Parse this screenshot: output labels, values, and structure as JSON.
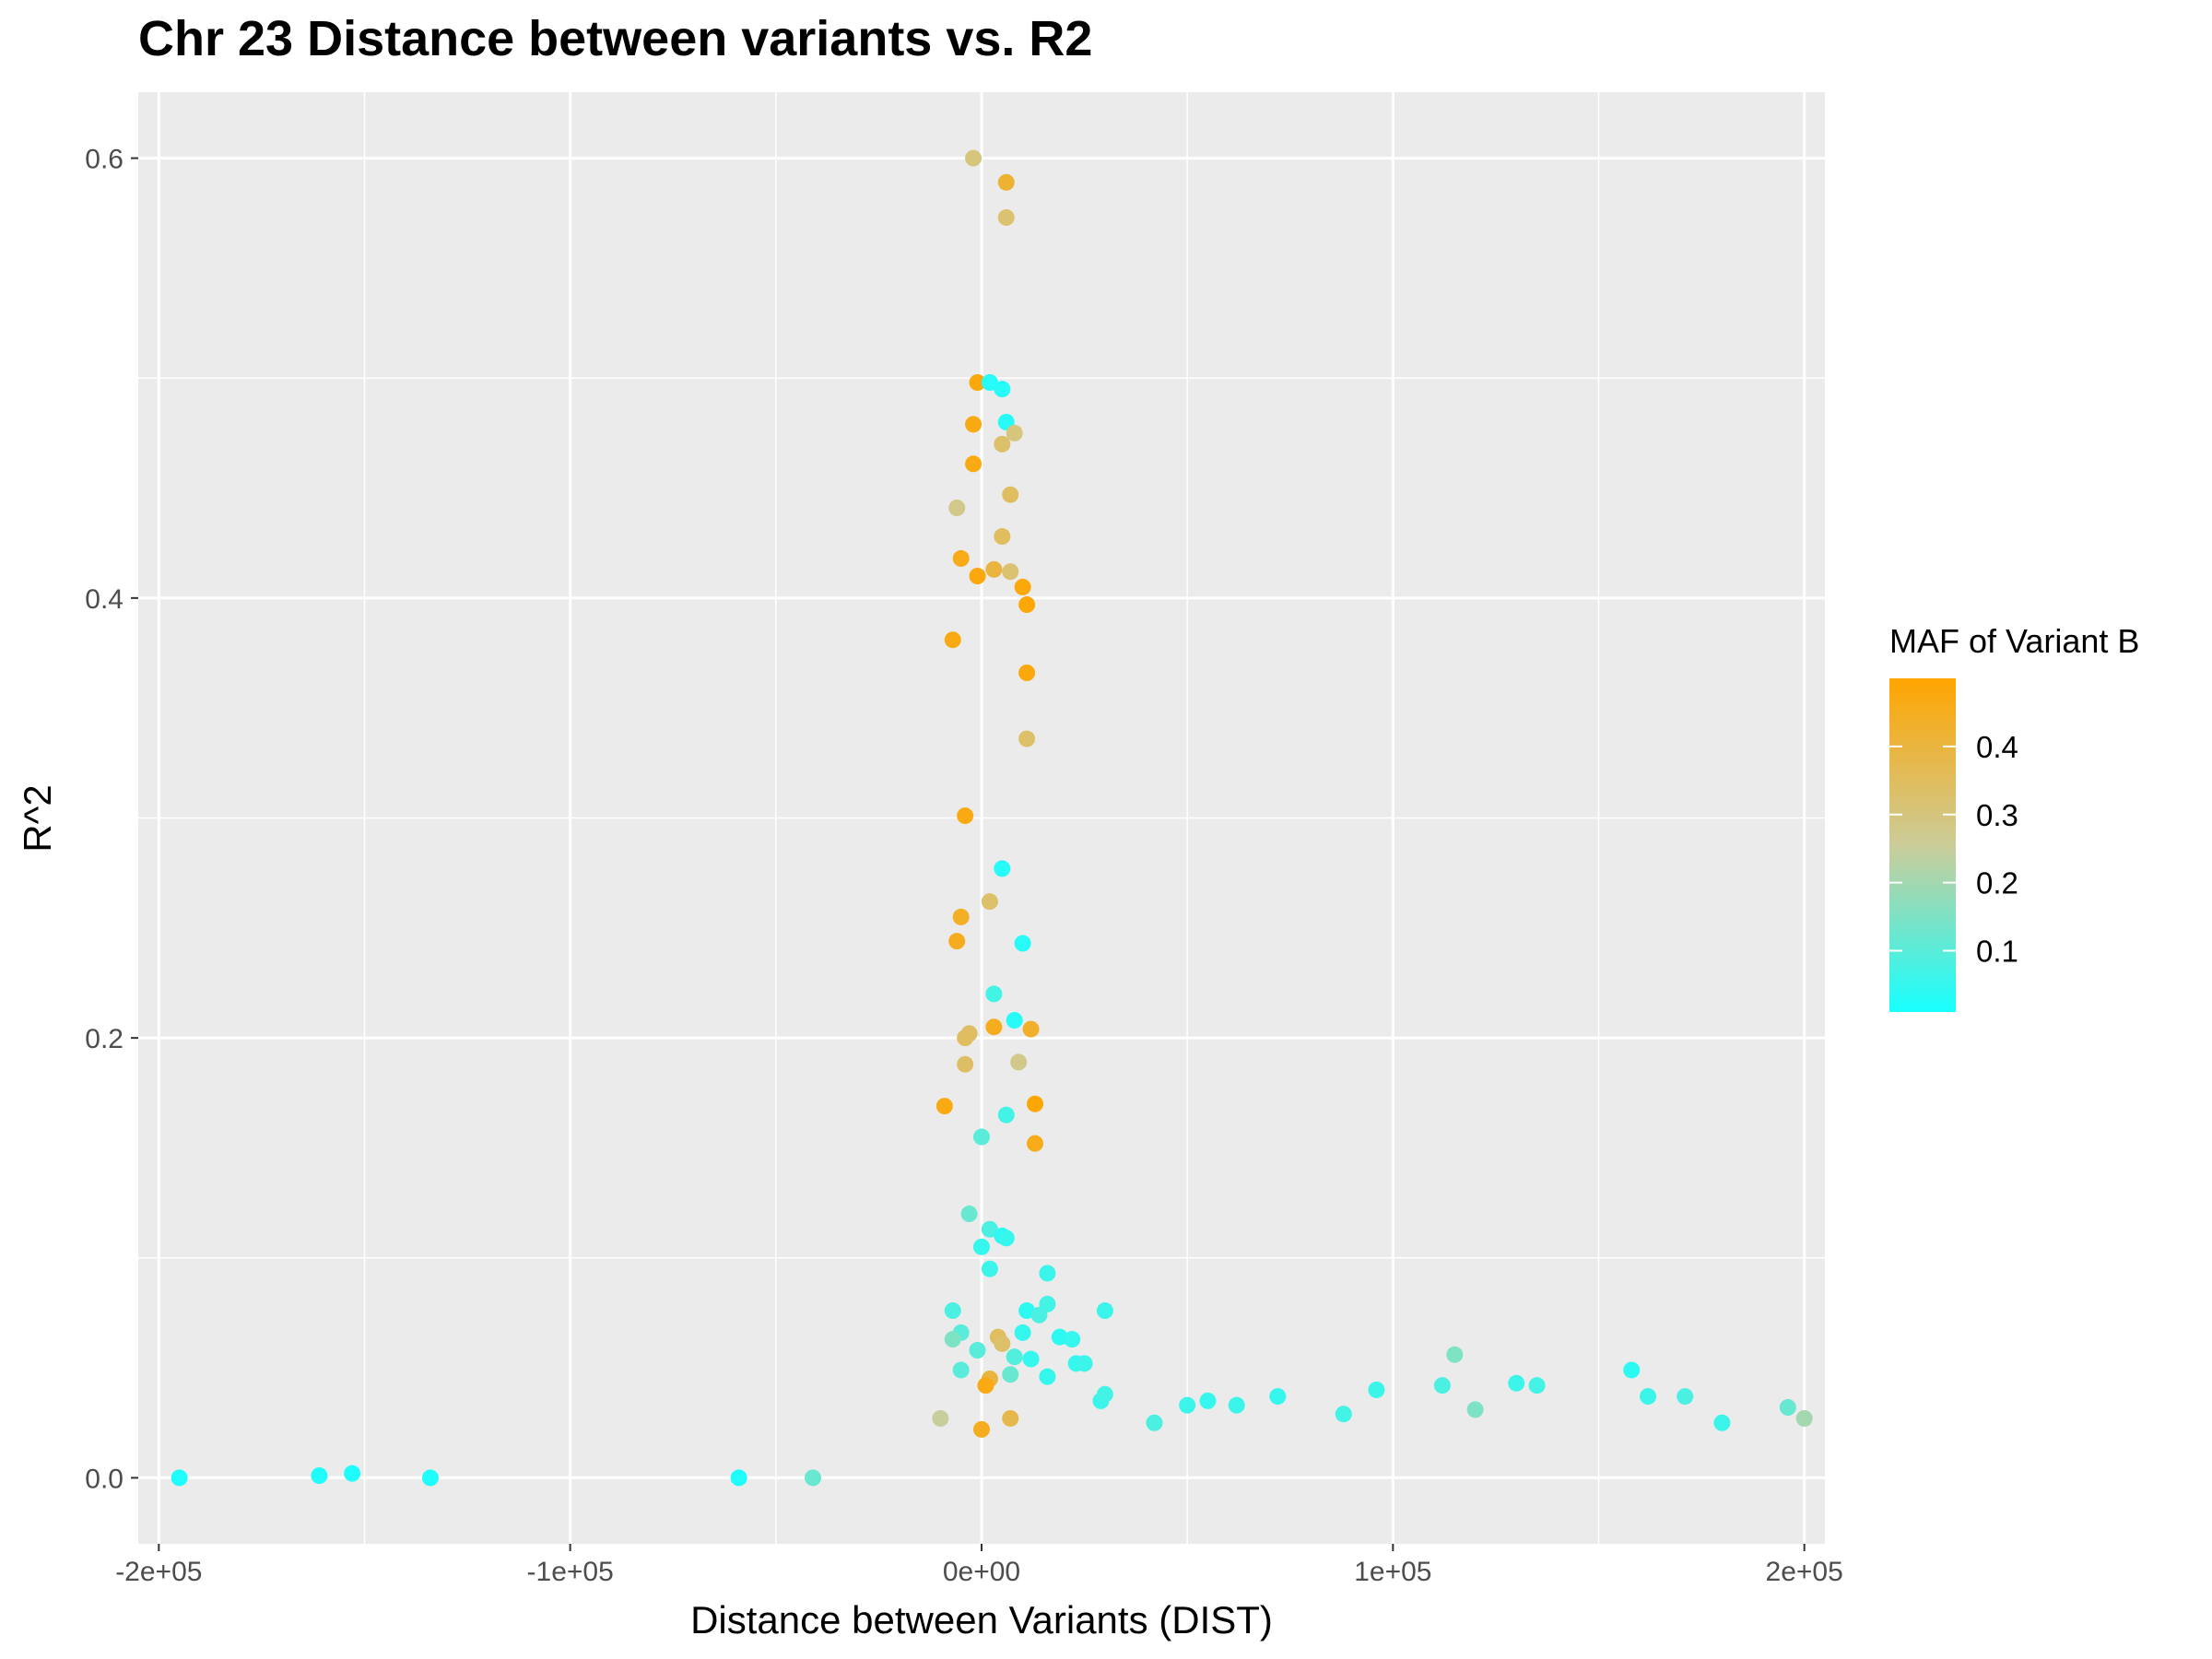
{
  "chart_data": {
    "type": "scatter",
    "title": "Chr 23 Distance between variants vs. R2",
    "xlabel": "Distance between Variants (DIST)",
    "ylabel": "R^2",
    "xlim": [
      -205000,
      205000
    ],
    "ylim": [
      -0.03,
      0.63
    ],
    "x_ticks": [
      -200000,
      -100000,
      0,
      100000,
      200000
    ],
    "x_tick_labels": [
      "-2e+05",
      "-1e+05",
      "0e+00",
      "1e+05",
      "2e+05"
    ],
    "y_ticks": [
      0.0,
      0.2,
      0.4,
      0.6
    ],
    "y_tick_labels": [
      "0.0",
      "0.2",
      "0.4",
      "0.6"
    ],
    "grid": true,
    "legend": {
      "title": "MAF of Variant B",
      "position": "right",
      "range": [
        0.01,
        0.5
      ],
      "ticks": [
        0.1,
        0.2,
        0.3,
        0.4
      ],
      "tick_labels": [
        "0.1",
        "0.2",
        "0.3",
        "0.4"
      ],
      "low_color": "#17FFFF",
      "mid_color": "#CCCC99",
      "high_color": "#FFA500"
    },
    "colors": {
      "panel": "#EBEBEB",
      "grid": "#FFFFFF"
    },
    "points": [
      {
        "x": -195000,
        "y": 0.0,
        "maf": 0.02
      },
      {
        "x": -161000,
        "y": 0.001,
        "maf": 0.02
      },
      {
        "x": -153000,
        "y": 0.002,
        "maf": 0.02
      },
      {
        "x": -134000,
        "y": 0.0,
        "maf": 0.02
      },
      {
        "x": -59000,
        "y": 0.0,
        "maf": 0.02
      },
      {
        "x": -41000,
        "y": 0.0,
        "maf": 0.12
      },
      {
        "x": -2000,
        "y": 0.6,
        "maf": 0.3
      },
      {
        "x": 6000,
        "y": 0.589,
        "maf": 0.42
      },
      {
        "x": 6000,
        "y": 0.573,
        "maf": 0.32
      },
      {
        "x": -1000,
        "y": 0.498,
        "maf": 0.48
      },
      {
        "x": 2000,
        "y": 0.498,
        "maf": 0.03
      },
      {
        "x": 5000,
        "y": 0.495,
        "maf": 0.03
      },
      {
        "x": -2000,
        "y": 0.479,
        "maf": 0.47
      },
      {
        "x": 6000,
        "y": 0.48,
        "maf": 0.03
      },
      {
        "x": 8000,
        "y": 0.475,
        "maf": 0.3
      },
      {
        "x": 5000,
        "y": 0.47,
        "maf": 0.33
      },
      {
        "x": -2000,
        "y": 0.461,
        "maf": 0.47
      },
      {
        "x": 7000,
        "y": 0.447,
        "maf": 0.35
      },
      {
        "x": -6000,
        "y": 0.441,
        "maf": 0.28
      },
      {
        "x": 5000,
        "y": 0.428,
        "maf": 0.35
      },
      {
        "x": -5000,
        "y": 0.418,
        "maf": 0.46
      },
      {
        "x": 3000,
        "y": 0.413,
        "maf": 0.4
      },
      {
        "x": 7000,
        "y": 0.412,
        "maf": 0.32
      },
      {
        "x": -1000,
        "y": 0.41,
        "maf": 0.48
      },
      {
        "x": 10000,
        "y": 0.405,
        "maf": 0.48
      },
      {
        "x": 11000,
        "y": 0.397,
        "maf": 0.49
      },
      {
        "x": -7000,
        "y": 0.381,
        "maf": 0.47
      },
      {
        "x": 11000,
        "y": 0.366,
        "maf": 0.48
      },
      {
        "x": 11000,
        "y": 0.336,
        "maf": 0.33
      },
      {
        "x": -4000,
        "y": 0.301,
        "maf": 0.47
      },
      {
        "x": 5000,
        "y": 0.277,
        "maf": 0.03
      },
      {
        "x": 2000,
        "y": 0.262,
        "maf": 0.33
      },
      {
        "x": -5000,
        "y": 0.255,
        "maf": 0.44
      },
      {
        "x": -6000,
        "y": 0.244,
        "maf": 0.45
      },
      {
        "x": 10000,
        "y": 0.243,
        "maf": 0.03
      },
      {
        "x": 3000,
        "y": 0.22,
        "maf": 0.07
      },
      {
        "x": 8000,
        "y": 0.208,
        "maf": 0.03
      },
      {
        "x": 3000,
        "y": 0.205,
        "maf": 0.45
      },
      {
        "x": 12000,
        "y": 0.204,
        "maf": 0.43
      },
      {
        "x": -3000,
        "y": 0.202,
        "maf": 0.34
      },
      {
        "x": -4000,
        "y": 0.2,
        "maf": 0.35
      },
      {
        "x": 9000,
        "y": 0.189,
        "maf": 0.28
      },
      {
        "x": -4000,
        "y": 0.188,
        "maf": 0.34
      },
      {
        "x": -9000,
        "y": 0.169,
        "maf": 0.47
      },
      {
        "x": 13000,
        "y": 0.17,
        "maf": 0.49
      },
      {
        "x": 6000,
        "y": 0.165,
        "maf": 0.07
      },
      {
        "x": 0,
        "y": 0.155,
        "maf": 0.1
      },
      {
        "x": 13000,
        "y": 0.152,
        "maf": 0.46
      },
      {
        "x": -3000,
        "y": 0.12,
        "maf": 0.12
      },
      {
        "x": 2000,
        "y": 0.113,
        "maf": 0.08
      },
      {
        "x": 5000,
        "y": 0.11,
        "maf": 0.04
      },
      {
        "x": 6000,
        "y": 0.109,
        "maf": 0.05
      },
      {
        "x": 0,
        "y": 0.105,
        "maf": 0.05
      },
      {
        "x": 2000,
        "y": 0.095,
        "maf": 0.06
      },
      {
        "x": 16000,
        "y": 0.093,
        "maf": 0.06
      },
      {
        "x": -7000,
        "y": 0.076,
        "maf": 0.08
      },
      {
        "x": 11000,
        "y": 0.076,
        "maf": 0.04
      },
      {
        "x": 30000,
        "y": 0.076,
        "maf": 0.06
      },
      {
        "x": 14000,
        "y": 0.074,
        "maf": 0.08
      },
      {
        "x": 16000,
        "y": 0.079,
        "maf": 0.07
      },
      {
        "x": -5000,
        "y": 0.066,
        "maf": 0.1
      },
      {
        "x": 4000,
        "y": 0.064,
        "maf": 0.35
      },
      {
        "x": 5000,
        "y": 0.061,
        "maf": 0.33
      },
      {
        "x": -7000,
        "y": 0.063,
        "maf": 0.15
      },
      {
        "x": 10000,
        "y": 0.066,
        "maf": 0.05
      },
      {
        "x": 19000,
        "y": 0.064,
        "maf": 0.04
      },
      {
        "x": 22000,
        "y": 0.063,
        "maf": 0.05
      },
      {
        "x": -1000,
        "y": 0.058,
        "maf": 0.1
      },
      {
        "x": 8000,
        "y": 0.055,
        "maf": 0.09
      },
      {
        "x": 12000,
        "y": 0.054,
        "maf": 0.05
      },
      {
        "x": 23000,
        "y": 0.052,
        "maf": 0.05
      },
      {
        "x": 25000,
        "y": 0.052,
        "maf": 0.06
      },
      {
        "x": 2000,
        "y": 0.045,
        "maf": 0.4
      },
      {
        "x": 1000,
        "y": 0.042,
        "maf": 0.47
      },
      {
        "x": -5000,
        "y": 0.049,
        "maf": 0.1
      },
      {
        "x": 7000,
        "y": 0.047,
        "maf": 0.12
      },
      {
        "x": 16000,
        "y": 0.046,
        "maf": 0.05
      },
      {
        "x": -10000,
        "y": 0.027,
        "maf": 0.25
      },
      {
        "x": 0,
        "y": 0.022,
        "maf": 0.45
      },
      {
        "x": 7000,
        "y": 0.027,
        "maf": 0.38
      },
      {
        "x": 29000,
        "y": 0.035,
        "maf": 0.06
      },
      {
        "x": 30000,
        "y": 0.038,
        "maf": 0.07
      },
      {
        "x": 50000,
        "y": 0.033,
        "maf": 0.06
      },
      {
        "x": 55000,
        "y": 0.035,
        "maf": 0.05
      },
      {
        "x": 62000,
        "y": 0.033,
        "maf": 0.06
      },
      {
        "x": 72000,
        "y": 0.037,
        "maf": 0.05
      },
      {
        "x": 96000,
        "y": 0.04,
        "maf": 0.06
      },
      {
        "x": 115000,
        "y": 0.056,
        "maf": 0.15
      },
      {
        "x": 112000,
        "y": 0.042,
        "maf": 0.08
      },
      {
        "x": 130000,
        "y": 0.043,
        "maf": 0.06
      },
      {
        "x": 135000,
        "y": 0.042,
        "maf": 0.07
      },
      {
        "x": 158000,
        "y": 0.049,
        "maf": 0.04
      },
      {
        "x": 162000,
        "y": 0.037,
        "maf": 0.06
      },
      {
        "x": 171000,
        "y": 0.037,
        "maf": 0.08
      },
      {
        "x": 196000,
        "y": 0.032,
        "maf": 0.12
      },
      {
        "x": 200000,
        "y": 0.027,
        "maf": 0.2
      },
      {
        "x": 180000,
        "y": 0.025,
        "maf": 0.06
      },
      {
        "x": 120000,
        "y": 0.031,
        "maf": 0.15
      },
      {
        "x": 88000,
        "y": 0.029,
        "maf": 0.07
      },
      {
        "x": 42000,
        "y": 0.025,
        "maf": 0.08
      }
    ]
  }
}
